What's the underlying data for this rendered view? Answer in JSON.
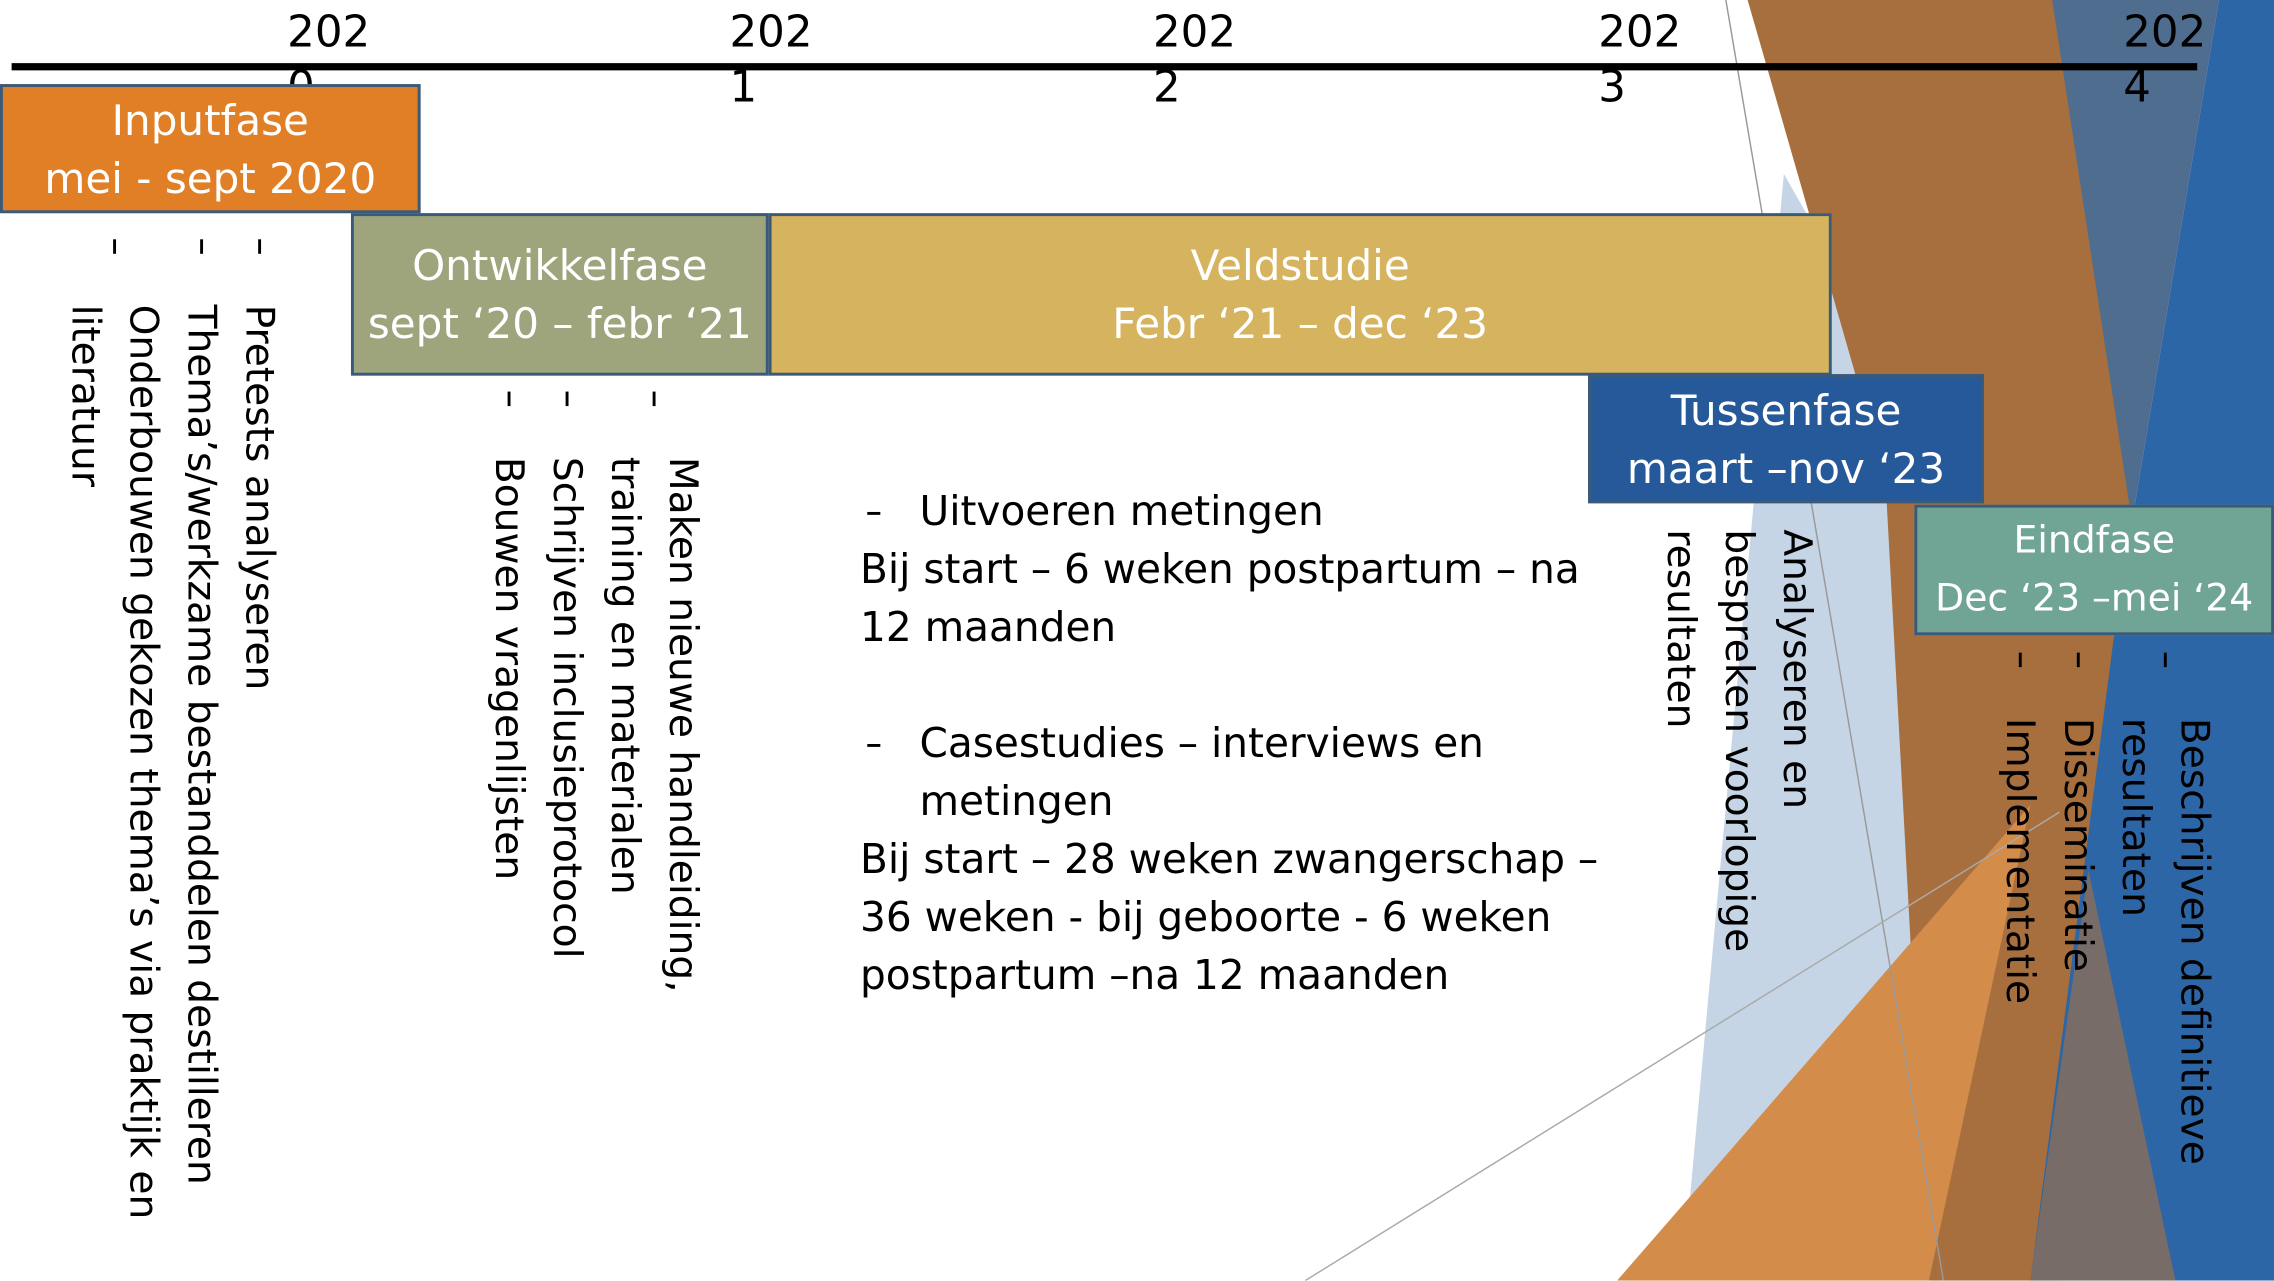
{
  "timeline": {
    "years": [
      "2020",
      "2021",
      "2022",
      "2023",
      "2024"
    ]
  },
  "phases": [
    {
      "title": "Inputfase",
      "period": "mei - sept 2020",
      "tasks": [
        "Pretests analyseren",
        "Thema’s/werkzame bestanddelen destilleren",
        "Onderbouwen gekozen thema’s via praktijk en literatuur"
      ]
    },
    {
      "title": "Ontwikkelfase",
      "period": "sept ‘20 – febr ‘21",
      "tasks": [
        "Maken nieuwe handleiding, training en materialen",
        "Schrijven inclusieprotocol",
        "Bouwen vragenlijsten"
      ]
    },
    {
      "title": "Veldstudie",
      "period": "Febr ‘21 – dec ‘23",
      "items": [
        {
          "bullet": "Uitvoeren metingen",
          "detail": "Bij start – 6 weken postpartum – na 12 maanden"
        },
        {
          "bullet": "Casestudies – interviews en metingen",
          "detail": "Bij start – 28 weken zwangerschap – 36 weken  - bij geboorte -  6 weken postpartum –na 12 maanden"
        }
      ]
    },
    {
      "title": "Tussenfase",
      "period": "maart –nov ‘23",
      "tasks": [
        "Analyseren en bespreken voorlopige resultaten"
      ]
    },
    {
      "title": "Eindfase",
      "period": "Dec ‘23 –mei ‘24",
      "tasks": [
        "Beschrijven definitieve resultaten",
        "Disseminatie",
        "Implementatie"
      ]
    }
  ]
}
